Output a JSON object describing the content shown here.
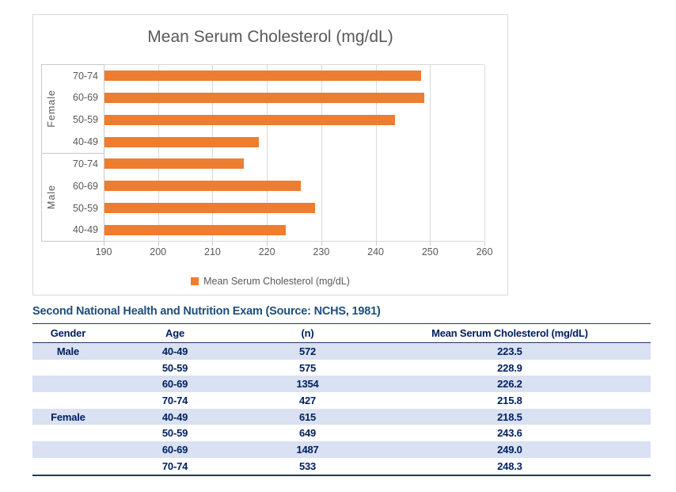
{
  "chart": {
    "title": "Mean Serum Cholesterol (mg/dL)",
    "legend_label": "Mean Serum Cholesterol (mg/dL)",
    "bar_color": "#ED7D31",
    "axis_min": 190,
    "axis_max": 260,
    "ticks": [
      190,
      200,
      210,
      220,
      230,
      240,
      250,
      260
    ],
    "groups": [
      {
        "label": "Female",
        "items": [
          {
            "age": "70-74",
            "value": 248.3
          },
          {
            "age": "60-69",
            "value": 249.0
          },
          {
            "age": "50-59",
            "value": 243.6
          },
          {
            "age": "40-49",
            "value": 218.5
          }
        ]
      },
      {
        "label": "Male",
        "items": [
          {
            "age": "70-74",
            "value": 215.8
          },
          {
            "age": "60-69",
            "value": 226.2
          },
          {
            "age": "50-59",
            "value": 228.9
          },
          {
            "age": "40-49",
            "value": 223.5
          }
        ]
      }
    ]
  },
  "chart_data": {
    "type": "bar",
    "orientation": "horizontal",
    "title": "Mean Serum Cholesterol (mg/dL)",
    "categories": [
      "Female 70-74",
      "Female 60-69",
      "Female 50-59",
      "Female 40-49",
      "Male 70-74",
      "Male 60-69",
      "Male 50-59",
      "Male 40-49"
    ],
    "values": [
      248.3,
      249.0,
      243.6,
      218.5,
      215.8,
      226.2,
      228.9,
      223.5
    ],
    "xlabel": "",
    "ylabel": "",
    "xlim": [
      190,
      260
    ],
    "xticks": [
      190,
      200,
      210,
      220,
      230,
      240,
      250,
      260
    ],
    "grid": true,
    "legend": [
      "Mean Serum Cholesterol (mg/dL)"
    ],
    "legend_position": "bottom",
    "bar_color": "#ED7D31"
  },
  "table": {
    "title": "Second National Health and Nutrition Exam (Source: NCHS, 1981)",
    "columns": [
      "Gender",
      "Age",
      "(n)",
      "Mean Serum Cholesterol (mg/dL)"
    ],
    "rows": [
      {
        "gender": "Male",
        "age": "40-49",
        "n": "572",
        "mean": "223.5"
      },
      {
        "gender": "",
        "age": "50-59",
        "n": "575",
        "mean": "228.9"
      },
      {
        "gender": "",
        "age": "60-69",
        "n": "1354",
        "mean": "226.2"
      },
      {
        "gender": "",
        "age": "70-74",
        "n": "427",
        "mean": "215.8"
      },
      {
        "gender": "Female",
        "age": "40-49",
        "n": "615",
        "mean": "218.5"
      },
      {
        "gender": "",
        "age": "50-59",
        "n": "649",
        "mean": "243.6"
      },
      {
        "gender": "",
        "age": "60-69",
        "n": "1487",
        "mean": "249.0"
      },
      {
        "gender": "",
        "age": "70-74",
        "n": "533",
        "mean": "248.3"
      }
    ]
  },
  "colors": {
    "bar_orange": "#ED7D31",
    "gridline_gray": "#D9D9D9",
    "chart_text_gray": "#595959",
    "section_title_blue": "#1F4E79",
    "table_text_navy": "#002060",
    "table_border_navy": "#1F3864",
    "row_shade_blue": "#D9E1F2"
  }
}
